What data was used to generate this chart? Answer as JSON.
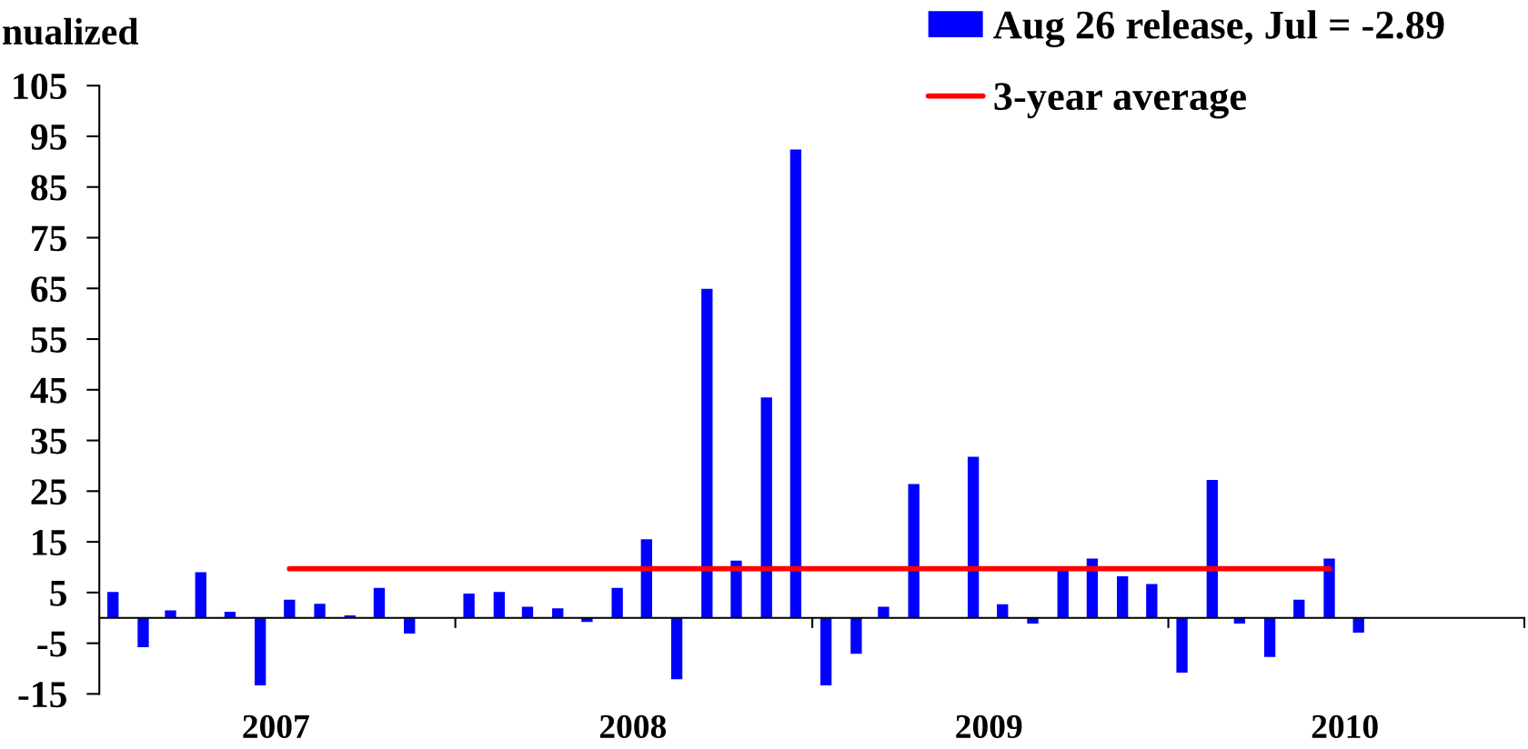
{
  "chart_data": {
    "type": "bar",
    "ylabel": "nualized",
    "x": [
      "2007-01-15",
      "2007-02-15",
      "2007-03-15",
      "2007-04-15",
      "2007-05-15",
      "2007-06-15",
      "2007-07-15",
      "2007-08-15",
      "2007-09-15",
      "2007-10-15",
      "2007-11-15",
      "2007-12-15",
      "2008-01-15",
      "2008-02-15",
      "2008-03-15",
      "2008-04-15",
      "2008-05-15",
      "2008-06-15",
      "2008-07-15",
      "2008-08-15",
      "2008-09-15",
      "2008-10-15",
      "2008-11-15",
      "2008-12-15",
      "2009-01-15",
      "2009-02-15",
      "2009-03-15",
      "2009-04-15",
      "2009-05-15",
      "2009-06-15",
      "2009-07-15",
      "2009-08-15",
      "2009-09-15",
      "2009-10-15",
      "2009-11-15",
      "2009-12-15",
      "2010-01-15",
      "2010-02-15",
      "2010-03-15",
      "2010-04-15",
      "2010-05-15",
      "2010-06-15",
      "2010-07-15"
    ],
    "xlim": [
      "2007-01-01",
      "2011-01-01"
    ],
    "xticks": [
      {
        "value": "2008-01-01",
        "label": null
      },
      {
        "value": "2009-01-01",
        "label": null
      },
      {
        "value": "2010-01-01",
        "label": null
      },
      {
        "value": "2011-01-01",
        "label": null
      },
      {
        "value": "2007-07-01",
        "label": "2007"
      },
      {
        "value": "2008-07-01",
        "label": "2008"
      },
      {
        "value": "2009-07-01",
        "label": "2009"
      },
      {
        "value": "2010-07-01",
        "label": "2010"
      }
    ],
    "ylim": [
      -15,
      105
    ],
    "yticks": [
      -15,
      -5,
      5,
      15,
      25,
      35,
      45,
      55,
      65,
      75,
      85,
      95,
      105
    ],
    "series": [
      {
        "name": "Aug 26 release, Jul = -2.89",
        "color": "#0000ff",
        "values": [
          5.1,
          -5.8,
          1.5,
          9.0,
          1.2,
          -13.3,
          3.6,
          2.8,
          0.5,
          5.9,
          -3.1,
          null,
          4.8,
          5.1,
          2.2,
          1.9,
          -0.8,
          5.9,
          15.5,
          -12.1,
          64.9,
          11.3,
          43.5,
          92.4,
          -13.3,
          -7.1,
          2.2,
          26.4,
          null,
          31.8,
          2.7,
          -1.1,
          9.5,
          11.7,
          8.2,
          6.7,
          -10.8,
          27.2,
          -1.1,
          -7.7,
          3.6,
          11.7,
          -2.9
        ]
      },
      {
        "name": "3-year average",
        "type": "line",
        "color": "#ff0000",
        "x": [
          "2007-07-15",
          "2010-06-15"
        ],
        "values": [
          9.7,
          9.7
        ]
      }
    ],
    "legend": "top right"
  }
}
